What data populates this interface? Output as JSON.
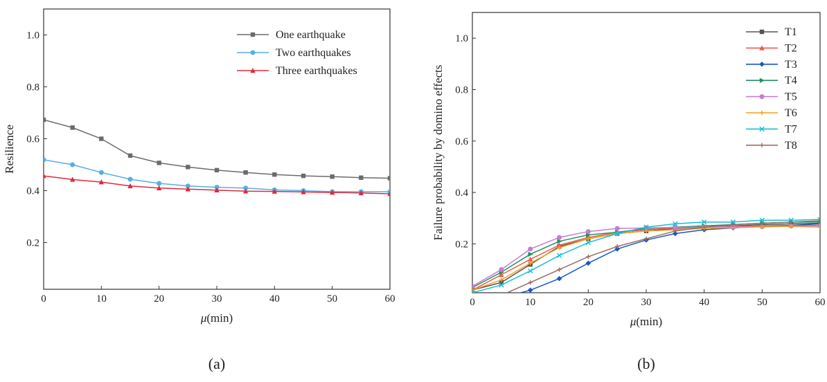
{
  "chart_data": [
    {
      "type": "line",
      "panel_label": "(a)",
      "xlabel_symbol": "μ",
      "xlabel_unit": "(min)",
      "ylabel": "Resilience",
      "xlim": [
        0,
        60
      ],
      "ylim": [
        0.02,
        1.1
      ],
      "xticks": [
        0,
        10,
        20,
        30,
        40,
        50,
        60
      ],
      "yticks": [
        0.2,
        0.4,
        0.6,
        0.8,
        1.0
      ],
      "ytick_labels": [
        "0.2",
        "0.4",
        "0.6",
        "0.8",
        "1.0"
      ],
      "legend_position": "top-right",
      "x": [
        0,
        5,
        10,
        15,
        20,
        25,
        30,
        35,
        40,
        45,
        50,
        55,
        60
      ],
      "series": [
        {
          "name": "One earthquake",
          "color": "#6b6b6b",
          "marker": "square",
          "values": [
            0.673,
            0.643,
            0.6,
            0.535,
            0.507,
            0.491,
            0.479,
            0.47,
            0.462,
            0.457,
            0.454,
            0.45,
            0.448
          ]
        },
        {
          "name": "Two earthquakes",
          "color": "#55aee6",
          "marker": "circle",
          "values": [
            0.519,
            0.5,
            0.47,
            0.444,
            0.428,
            0.418,
            0.413,
            0.41,
            0.403,
            0.4,
            0.396,
            0.396,
            0.396
          ]
        },
        {
          "name": "Three earthquakes",
          "color": "#e0283a",
          "marker": "triangle",
          "values": [
            0.457,
            0.443,
            0.433,
            0.418,
            0.41,
            0.406,
            0.402,
            0.398,
            0.397,
            0.395,
            0.393,
            0.391,
            0.388
          ]
        }
      ]
    },
    {
      "type": "line",
      "panel_label": "(b)",
      "xlabel_symbol": "μ",
      "xlabel_unit": "(min)",
      "ylabel": "Failure probability by domino effects",
      "xlim": [
        0,
        60
      ],
      "ylim": [
        0.01,
        1.1
      ],
      "xticks": [
        0,
        10,
        20,
        30,
        40,
        50,
        60
      ],
      "yticks": [
        0.2,
        0.4,
        0.6,
        0.8,
        1.0
      ],
      "ytick_labels": [
        "0.2",
        "0.4",
        "0.6",
        "0.8",
        "1.0"
      ],
      "legend_position": "top-right",
      "x": [
        0,
        5,
        10,
        15,
        20,
        25,
        30,
        35,
        40,
        45,
        50,
        55,
        60
      ],
      "series": [
        {
          "name": "T1",
          "color": "#555555",
          "marker": "square",
          "values": [
            0.02,
            0.05,
            0.12,
            0.19,
            0.22,
            0.24,
            0.25,
            0.26,
            0.265,
            0.27,
            0.275,
            0.278,
            0.28
          ]
        },
        {
          "name": "T2",
          "color": "#f05a46",
          "marker": "triangle",
          "values": [
            0.02,
            0.08,
            0.14,
            0.195,
            0.225,
            0.245,
            0.255,
            0.262,
            0.265,
            0.268,
            0.27,
            0.272,
            0.272
          ]
        },
        {
          "name": "T3",
          "color": "#1a55c4",
          "marker": "diamond",
          "values": [
            -0.02,
            -0.01,
            0.02,
            0.065,
            0.125,
            0.18,
            0.215,
            0.24,
            0.255,
            0.262,
            0.268,
            0.272,
            0.278
          ]
        },
        {
          "name": "T4",
          "color": "#1a9466",
          "marker": "tri-right",
          "values": [
            0.03,
            0.09,
            0.16,
            0.21,
            0.235,
            0.245,
            0.26,
            0.265,
            0.27,
            0.275,
            0.28,
            0.285,
            0.285
          ]
        },
        {
          "name": "T5",
          "color": "#c77bd4",
          "marker": "circle",
          "values": [
            0.035,
            0.1,
            0.18,
            0.225,
            0.248,
            0.26,
            0.262,
            0.264,
            0.265,
            0.266,
            0.267,
            0.27,
            0.27
          ]
        },
        {
          "name": "T6",
          "color": "#f0a020",
          "marker": "plus",
          "values": [
            0.02,
            0.06,
            0.125,
            0.185,
            0.22,
            0.24,
            0.25,
            0.255,
            0.26,
            0.263,
            0.266,
            0.268,
            0.265
          ]
        },
        {
          "name": "T7",
          "color": "#18bcd6",
          "marker": "x",
          "values": [
            0.01,
            0.04,
            0.095,
            0.155,
            0.205,
            0.24,
            0.265,
            0.278,
            0.285,
            0.285,
            0.292,
            0.292,
            0.295
          ]
        },
        {
          "name": "T8",
          "color": "#9a6d60",
          "marker": "plus",
          "values": [
            -0.01,
            0.0,
            0.05,
            0.1,
            0.15,
            0.19,
            0.22,
            0.25,
            0.265,
            0.275,
            0.28,
            0.285,
            0.29
          ]
        }
      ]
    }
  ]
}
